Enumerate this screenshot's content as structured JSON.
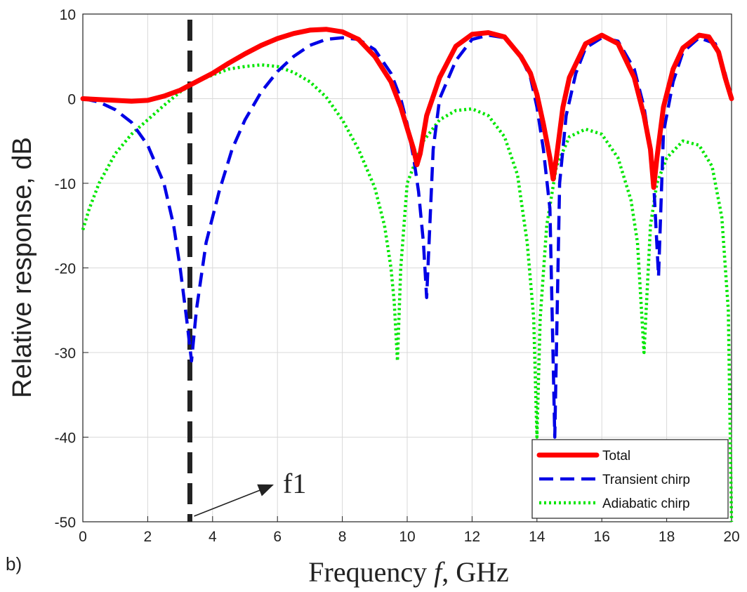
{
  "panel_label": "b)",
  "annotation": "f1",
  "colors": {
    "total": "#ff0000",
    "transient": "#0000e6",
    "adiabatic": "#00e600",
    "marker": "#222222"
  },
  "chart_data": {
    "type": "line",
    "xlabel_text": "Frequency",
    "xlabel_var": "f",
    "xlabel_unit": ", GHz",
    "ylabel": "Relative response, dB",
    "xlim": [
      0,
      20
    ],
    "ylim": [
      -50,
      10
    ],
    "xticks": [
      0,
      2,
      4,
      6,
      8,
      10,
      12,
      14,
      16,
      18,
      20
    ],
    "yticks": [
      10,
      0,
      -10,
      -20,
      -30,
      -40,
      -50
    ],
    "grid": true,
    "legend_position": "bottom-right",
    "vertical_marker_x": 3.3,
    "series": [
      {
        "name": "Total",
        "style": "solid",
        "color": "#ff0000",
        "x": [
          0,
          0.5,
          1,
          1.5,
          2,
          2.5,
          3,
          3.5,
          4,
          4.5,
          5,
          5.5,
          6,
          6.5,
          7,
          7.5,
          8,
          8.5,
          9,
          9.5,
          9.8,
          10,
          10.2,
          10.3,
          10.4,
          10.6,
          11,
          11.5,
          12,
          12.5,
          13,
          13.5,
          13.8,
          14,
          14.2,
          14.4,
          14.5,
          14.6,
          14.8,
          15,
          15.5,
          16,
          16.5,
          17,
          17.3,
          17.5,
          17.6,
          17.7,
          17.9,
          18.2,
          18.5,
          19,
          19.3,
          19.6,
          19.8,
          20
        ],
        "values": [
          0,
          -0.1,
          -0.2,
          -0.3,
          -0.2,
          0.3,
          1,
          2,
          3,
          4.2,
          5.3,
          6.3,
          7.1,
          7.7,
          8.1,
          8.2,
          7.9,
          7,
          5,
          2,
          -1,
          -3.5,
          -6,
          -7.8,
          -6.5,
          -2,
          2.5,
          6.2,
          7.6,
          7.8,
          7.3,
          5,
          3,
          0.5,
          -3,
          -7,
          -9.5,
          -7,
          -1,
          2.5,
          6.5,
          7.5,
          6.5,
          2.5,
          -2,
          -6,
          -10.5,
          -7,
          -1,
          3.5,
          6,
          7.5,
          7.3,
          5.5,
          2.5,
          0
        ]
      },
      {
        "name": "Transient chirp",
        "style": "dashed",
        "color": "#0000e6",
        "x": [
          0,
          0.5,
          1,
          1.5,
          2,
          2.5,
          2.8,
          3,
          3.2,
          3.35,
          3.5,
          3.8,
          4.2,
          4.6,
          5,
          5.5,
          6,
          6.5,
          7,
          7.5,
          8,
          8.5,
          9,
          9.5,
          9.8,
          10,
          10.2,
          10.35,
          10.5,
          10.6,
          10.8,
          11,
          11.5,
          12,
          12.5,
          13,
          13.5,
          13.8,
          14,
          14.2,
          14.4,
          14.55,
          14.7,
          14.9,
          15.2,
          15.5,
          16,
          16.5,
          17,
          17.3,
          17.5,
          17.6,
          17.75,
          17.9,
          18.2,
          18.5,
          19,
          19.5,
          19.8,
          20
        ],
        "values": [
          0,
          -0.4,
          -1.3,
          -2.8,
          -5.5,
          -10,
          -15,
          -20,
          -26,
          -31,
          -25,
          -17,
          -11,
          -6,
          -2.5,
          0.8,
          3.2,
          5,
          6.3,
          7,
          7.2,
          7,
          5.8,
          3,
          0,
          -3,
          -7,
          -11,
          -17,
          -23.5,
          -6,
          0,
          4.5,
          7,
          7.5,
          7.2,
          5,
          2.5,
          -1,
          -6,
          -13,
          -40,
          -10,
          -2,
          3,
          6,
          7.2,
          6.8,
          3.5,
          -1,
          -6,
          -10,
          -21,
          -4,
          2,
          5.5,
          7.2,
          6.5,
          3,
          0
        ]
      },
      {
        "name": "Adiabatic chirp",
        "style": "dotted",
        "color": "#00e600",
        "x": [
          0,
          0.2,
          0.5,
          1,
          1.5,
          2,
          2.5,
          3,
          3.5,
          4,
          4.5,
          5,
          5.5,
          6,
          6.5,
          7,
          7.5,
          8,
          8.5,
          9,
          9.3,
          9.5,
          9.6,
          9.7,
          9.8,
          10,
          10.5,
          11,
          11.5,
          12,
          12.5,
          13,
          13.4,
          13.7,
          13.9,
          14,
          14.1,
          14.3,
          14.6,
          15,
          15.5,
          16,
          16.5,
          16.9,
          17.1,
          17.3,
          17.5,
          17.7,
          18,
          18.5,
          19,
          19.4,
          19.7,
          19.9,
          20
        ],
        "values": [
          -15.5,
          -13,
          -10,
          -6.5,
          -4.2,
          -2.5,
          -0.8,
          0.8,
          2,
          2.8,
          3.5,
          3.8,
          4,
          3.8,
          3.1,
          2,
          0.2,
          -2.5,
          -6,
          -10.5,
          -15,
          -20,
          -24,
          -31,
          -20,
          -10,
          -5,
          -2.5,
          -1.4,
          -1.2,
          -2,
          -4.5,
          -9,
          -17,
          -26,
          -40,
          -26,
          -15,
          -8,
          -4.5,
          -3.6,
          -4.2,
          -7,
          -12,
          -17,
          -30,
          -15,
          -10,
          -7,
          -5,
          -5.5,
          -8,
          -14,
          -25,
          -50
        ]
      }
    ]
  }
}
